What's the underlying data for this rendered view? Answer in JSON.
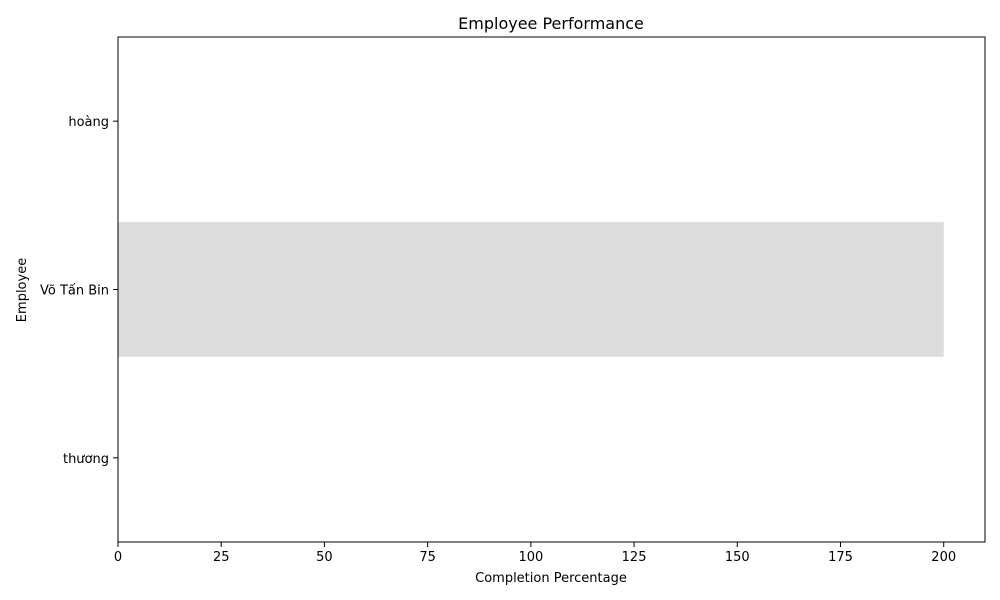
{
  "chart_data": {
    "type": "bar",
    "orientation": "horizontal",
    "title": "Employee Performance",
    "xlabel": "Completion Percentage",
    "ylabel": "Employee",
    "categories": [
      "hoàng",
      "Võ Tấn Bin",
      "thương"
    ],
    "values": [
      0,
      200,
      0
    ],
    "xlim": [
      0,
      210
    ],
    "xticks": [
      0,
      25,
      50,
      75,
      100,
      125,
      150,
      175,
      200
    ],
    "grid": false,
    "bar_color": "#dcdcdc"
  }
}
